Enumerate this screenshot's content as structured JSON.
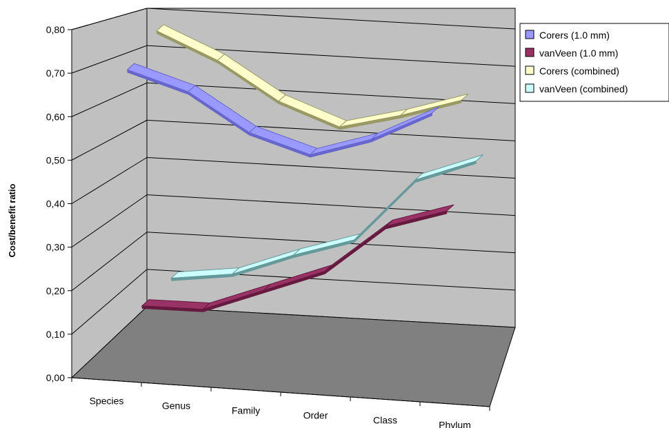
{
  "chart_data": {
    "type": "line",
    "style": "3d",
    "categories": [
      "Species",
      "Genus",
      "Family",
      "Order",
      "Class",
      "Phylum"
    ],
    "series": [
      {
        "name": "Corers (1.0 mm)",
        "values": [
          0.77,
          0.72,
          0.62,
          0.57,
          0.62,
          0.7
        ],
        "color": "#9999FF",
        "edge": "#6666CC"
      },
      {
        "name": "vanVeen (1.0 mm)",
        "values": [
          0.1,
          0.1,
          0.16,
          0.22,
          0.35,
          0.4
        ],
        "color": "#993366",
        "edge": "#66193F"
      },
      {
        "name": "Corers (combined)",
        "values": [
          0.8,
          0.73,
          0.63,
          0.57,
          0.61,
          0.66
        ],
        "color": "#FFFFCC",
        "edge": "#999966"
      },
      {
        "name": "vanVeen (combined)",
        "values": [
          0.1,
          0.12,
          0.18,
          0.23,
          0.4,
          0.46
        ],
        "color": "#CCFFFF",
        "edge": "#669999"
      }
    ],
    "title": "",
    "xlabel": "",
    "ylabel": "Cost/benefit ratio",
    "ylim": [
      0,
      0.8
    ],
    "yticks": [
      "0,00",
      "0,10",
      "0,20",
      "0,30",
      "0,40",
      "0,50",
      "0,60",
      "0,70",
      "0,80"
    ],
    "grid": true,
    "legend": "top-right",
    "wall_color": "#C0C0C0",
    "floor_color": "#808080"
  }
}
